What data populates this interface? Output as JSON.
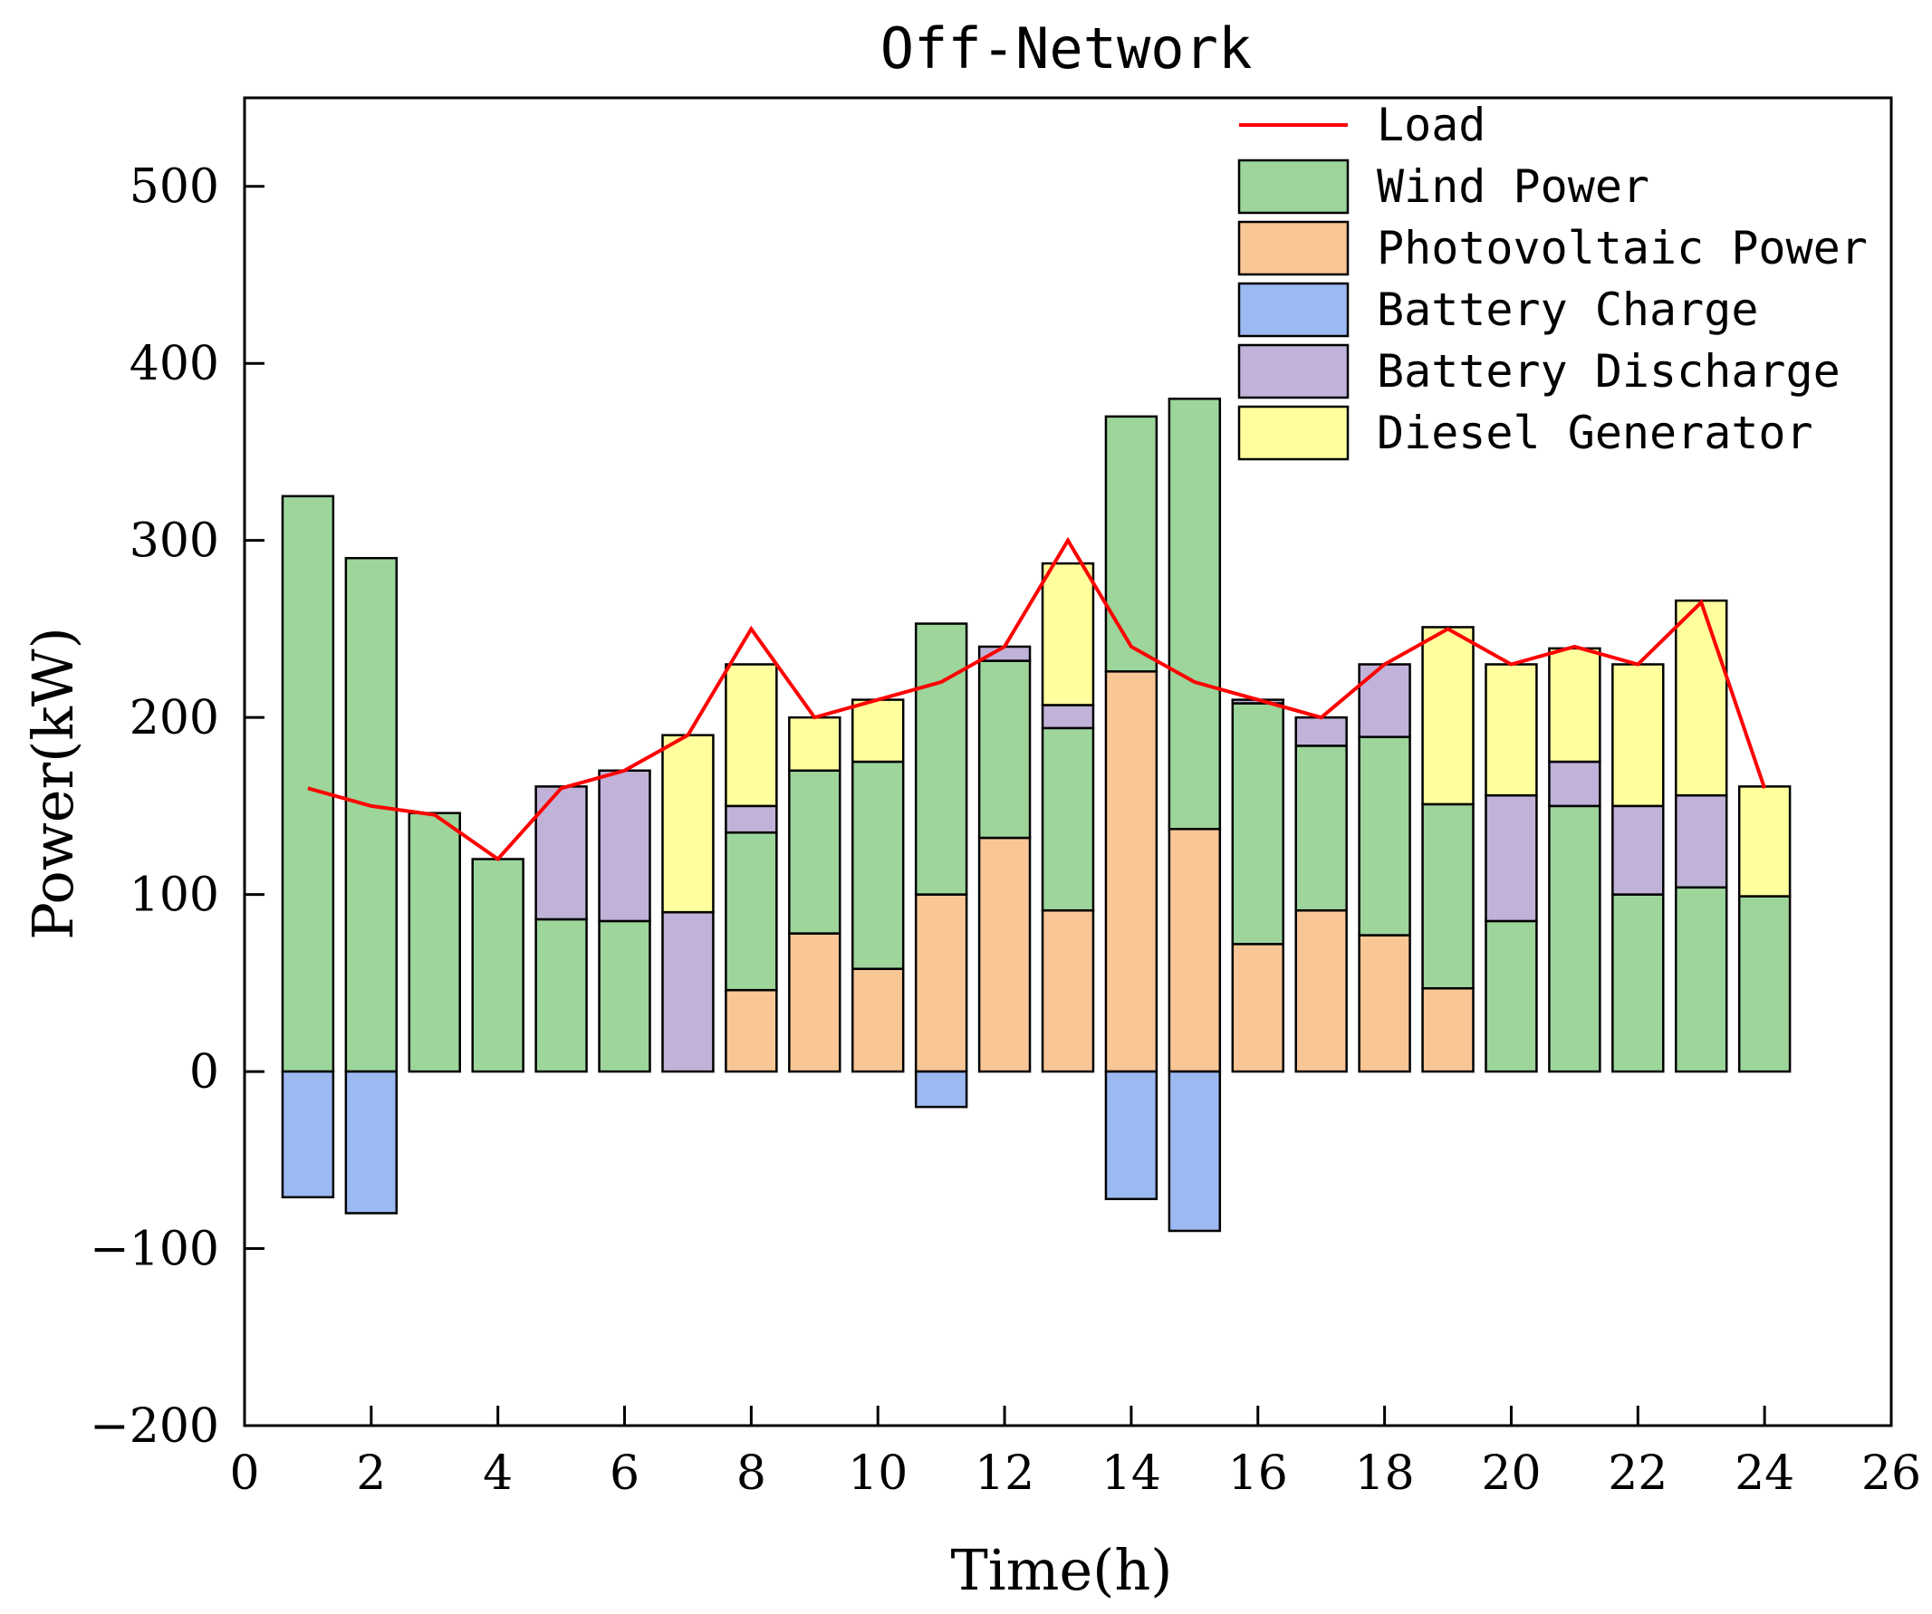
{
  "chart_data": {
    "type": "bar",
    "stacked": true,
    "title": "Off-Network",
    "xlabel": "Time(h)",
    "ylabel": "Power(kW)",
    "xlim": [
      0,
      26
    ],
    "ylim": [
      -200,
      550
    ],
    "xticks": [
      "0",
      "2",
      "4",
      "6",
      "8",
      "10",
      "12",
      "14",
      "16",
      "18",
      "20",
      "22",
      "24",
      "26"
    ],
    "yticks": [
      "-200",
      "-100",
      "0",
      "100",
      "200",
      "300",
      "400",
      "500"
    ],
    "legend_position": "top-right",
    "x": [
      1,
      2,
      3,
      4,
      5,
      6,
      7,
      8,
      9,
      10,
      11,
      12,
      13,
      14,
      15,
      16,
      17,
      18,
      19,
      20,
      21,
      22,
      23,
      24
    ],
    "series": [
      {
        "key": "pv",
        "name": "Photovoltaic Power",
        "color": "#F9C696",
        "values": [
          0,
          0,
          0,
          0,
          0,
          0,
          0,
          46,
          78,
          58,
          100,
          132,
          91,
          226,
          137,
          72,
          91,
          77,
          47,
          0,
          0,
          0,
          0,
          0
        ]
      },
      {
        "key": "wind",
        "name": "Wind Power",
        "color": "#9DD59B",
        "values": [
          325,
          290,
          146,
          120,
          86,
          85,
          0,
          89,
          92,
          117,
          153,
          100,
          103,
          144,
          243,
          136,
          93,
          112,
          104,
          85,
          150,
          100,
          104,
          99
        ]
      },
      {
        "key": "discharge",
        "name": "Battery Discharge",
        "color": "#C1B2D9",
        "values": [
          0,
          0,
          0,
          0,
          75,
          85,
          90,
          15,
          0,
          0,
          0,
          8,
          13,
          0,
          0,
          2,
          16,
          41,
          0,
          71,
          25,
          50,
          52,
          0
        ]
      },
      {
        "key": "diesel",
        "name": "Diesel Generator",
        "color": "#FFFF9E",
        "values": [
          0,
          0,
          0,
          0,
          0,
          0,
          100,
          80,
          30,
          35,
          0,
          0,
          80,
          0,
          0,
          0,
          0,
          0,
          100,
          74,
          64,
          80,
          110,
          62
        ]
      },
      {
        "key": "charge",
        "name": "Battery Charge",
        "color": "#9DB9F2",
        "values": [
          -71,
          -80,
          0,
          0,
          0,
          0,
          0,
          0,
          0,
          0,
          -20,
          0,
          0,
          -72,
          -90,
          0,
          0,
          0,
          0,
          0,
          0,
          0,
          0,
          0
        ]
      }
    ],
    "line": {
      "name": "Load",
      "color": "#FF0000",
      "values": [
        160,
        150,
        145,
        120,
        160,
        170,
        190,
        250,
        200,
        210,
        220,
        240,
        300,
        240,
        220,
        210,
        200,
        230,
        250,
        230,
        240,
        230,
        265,
        160
      ]
    },
    "legend_order": [
      "Load",
      "Wind Power",
      "Photovoltaic Power",
      "Battery Charge",
      "Battery Discharge",
      "Diesel Generator"
    ]
  }
}
